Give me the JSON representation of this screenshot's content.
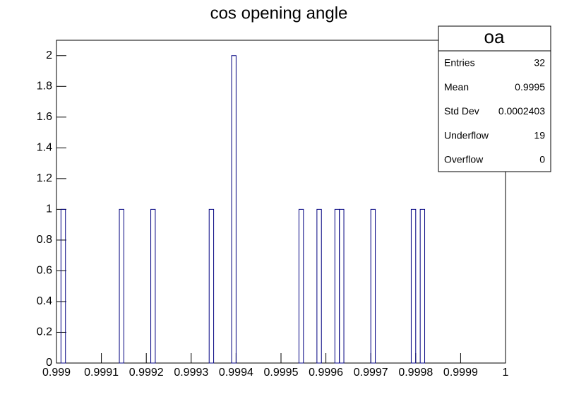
{
  "chart_data": {
    "type": "histogram",
    "title": "cos opening angle",
    "bins": [
      0.999,
      0.99901,
      0.99902,
      0.99903,
      0.99904,
      0.99905,
      0.99906,
      0.99907,
      0.99908,
      0.99909,
      0.9991,
      0.99911,
      0.99912,
      0.99913,
      0.99914,
      0.99915,
      0.99916,
      0.99917,
      0.99918,
      0.99919,
      0.9992,
      0.99921,
      0.99922,
      0.99923,
      0.99924,
      0.99925,
      0.99926,
      0.99927,
      0.99928,
      0.99929,
      0.9993,
      0.99931,
      0.99932,
      0.99933,
      0.99934,
      0.99935,
      0.99936,
      0.99937,
      0.99938,
      0.99939,
      0.9994,
      0.99941,
      0.99942,
      0.99943,
      0.99944,
      0.99945,
      0.99946,
      0.99947,
      0.99948,
      0.99949,
      0.9995,
      0.99951,
      0.99952,
      0.99953,
      0.99954,
      0.99955,
      0.99956,
      0.99957,
      0.99958,
      0.99959,
      0.9996,
      0.99961,
      0.99962,
      0.99963,
      0.99964,
      0.99965,
      0.99966,
      0.99967,
      0.99968,
      0.99969,
      0.9997,
      0.99971,
      0.99972,
      0.99973,
      0.99974,
      0.99975,
      0.99976,
      0.99977,
      0.99978,
      0.99979,
      0.9998,
      0.99981,
      0.99982,
      0.99983,
      0.99984,
      0.99985,
      0.99986,
      0.99987,
      0.99988,
      0.99989,
      0.9999,
      0.99991,
      0.99992,
      0.99993,
      0.99994,
      0.99995,
      0.99996,
      0.99997,
      0.99998,
      0.99999,
      1
    ],
    "counts": [
      0,
      1,
      0,
      0,
      0,
      0,
      0,
      0,
      0,
      0,
      0,
      0,
      0,
      0,
      1,
      0,
      0,
      0,
      0,
      0,
      0,
      1,
      0,
      0,
      0,
      0,
      0,
      0,
      0,
      0,
      0,
      0,
      0,
      0,
      1,
      0,
      0,
      0,
      0,
      2,
      0,
      0,
      0,
      0,
      0,
      0,
      0,
      0,
      0,
      0,
      0,
      0,
      0,
      0,
      1,
      0,
      0,
      0,
      1,
      0,
      0,
      0,
      1,
      1,
      0,
      0,
      0,
      0,
      0,
      0,
      1,
      0,
      0,
      0,
      0,
      0,
      0,
      0,
      0,
      1,
      0,
      1,
      0,
      0,
      0,
      0,
      0,
      0,
      0,
      0,
      0,
      0,
      0,
      0,
      0,
      0,
      0,
      0,
      0,
      0
    ],
    "color": "#000080",
    "xlim": [
      0.999,
      1
    ],
    "xticks": [
      0.999,
      0.9991,
      0.9992,
      0.9993,
      0.9994,
      0.9995,
      0.9996,
      0.9997,
      0.9998,
      0.9999,
      1
    ],
    "ylim": [
      0,
      2.1
    ],
    "yticks": [
      0,
      0.2,
      0.4,
      0.6,
      0.8,
      1,
      1.2,
      1.4,
      1.6,
      1.8,
      2
    ],
    "stats": {
      "title": "oa",
      "rows": [
        {
          "label": "Entries",
          "value": 32
        },
        {
          "label": "Mean",
          "value": 0.9995
        },
        {
          "label": "Std Dev",
          "value": 0.0002403
        },
        {
          "label": "Underflow",
          "value": 19
        },
        {
          "label": "Overflow",
          "value": 0
        }
      ]
    }
  }
}
